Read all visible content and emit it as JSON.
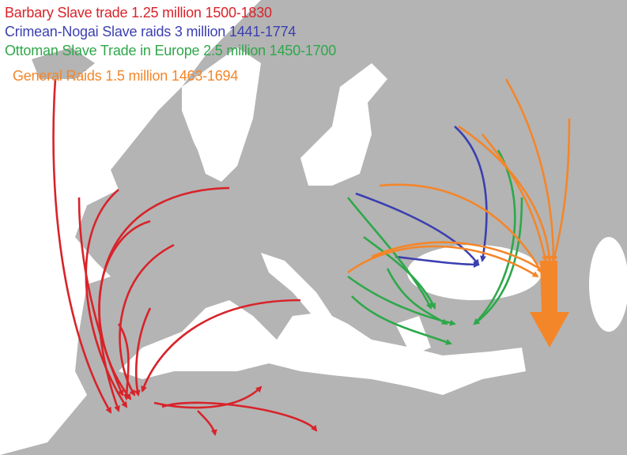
{
  "legend": [
    {
      "label": "Barbary Slave trade 1.25 million 1500-1830",
      "color": "#d8232a"
    },
    {
      "label": "Crimean-Nogai Slave raids 3 million 1441-1774",
      "color": "#3b3fb0"
    },
    {
      "label": "Ottoman Slave Trade in Europe 2.5 million 1450-1700",
      "color": "#2ea84a"
    },
    {
      "label": "General Raids 1.5 million 1463-1694",
      "color": "#f4862a"
    }
  ],
  "colors": {
    "land": "#b4b4b4",
    "sea": "#ffffff",
    "borders": "#ffffff"
  }
}
